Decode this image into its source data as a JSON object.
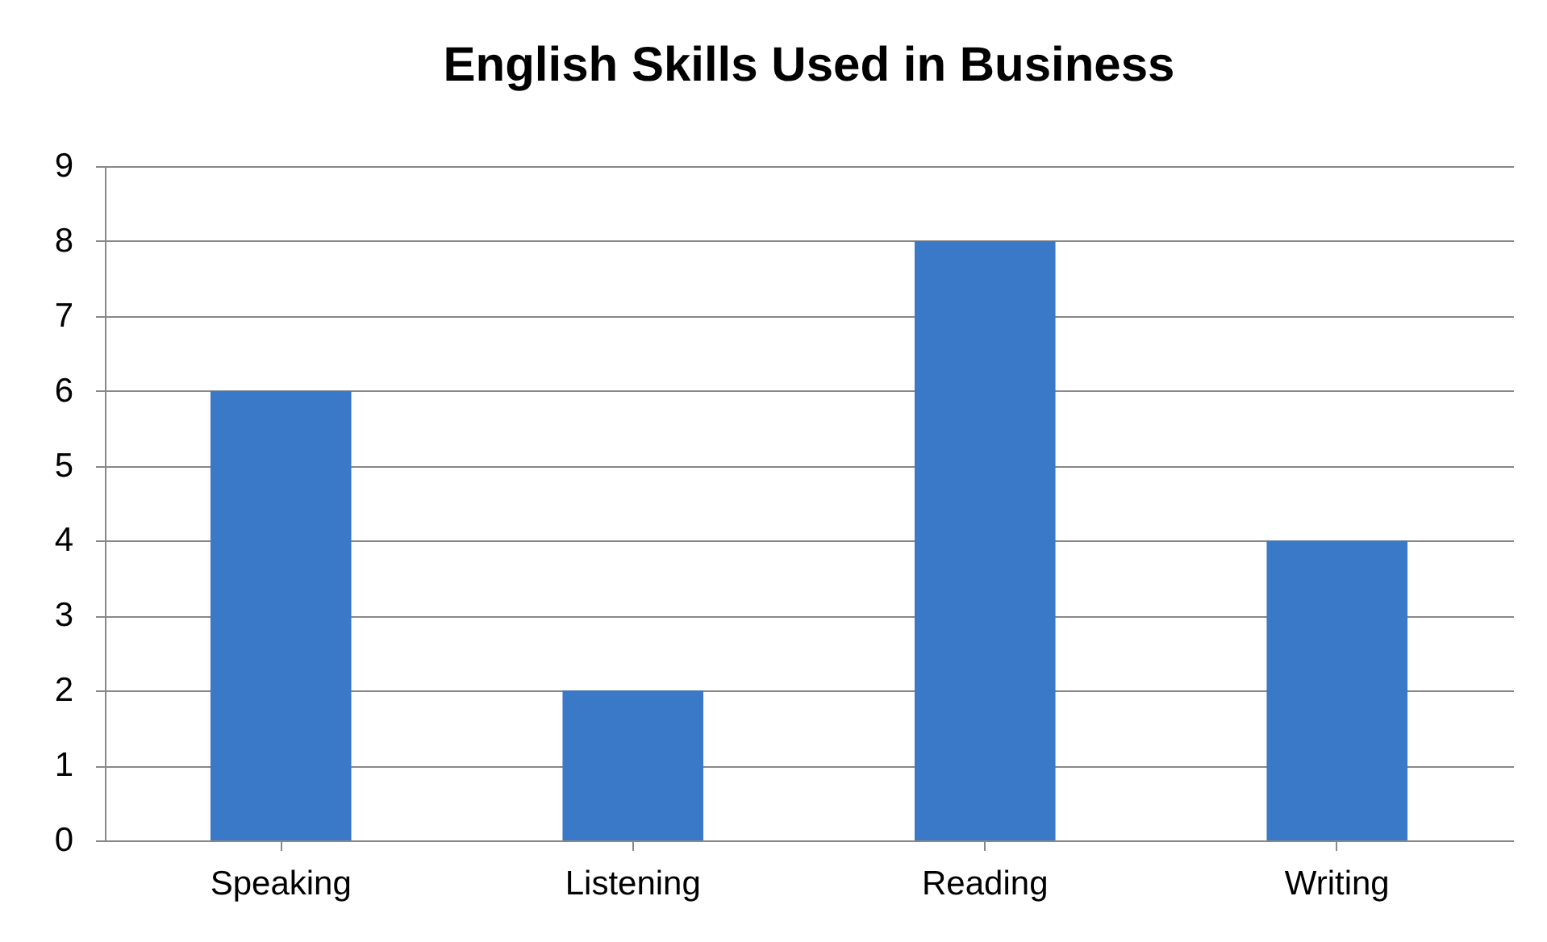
{
  "chart_data": {
    "type": "bar",
    "title": "English Skills Used in Business",
    "categories": [
      "Speaking",
      "Listening",
      "Reading",
      "Writing"
    ],
    "values": [
      6,
      2,
      8,
      4
    ],
    "color": "#3a78c8",
    "ylim": [
      0,
      9
    ],
    "yticks": [
      0,
      1,
      2,
      3,
      4,
      5,
      6,
      7,
      8,
      9
    ],
    "grid": "y"
  }
}
